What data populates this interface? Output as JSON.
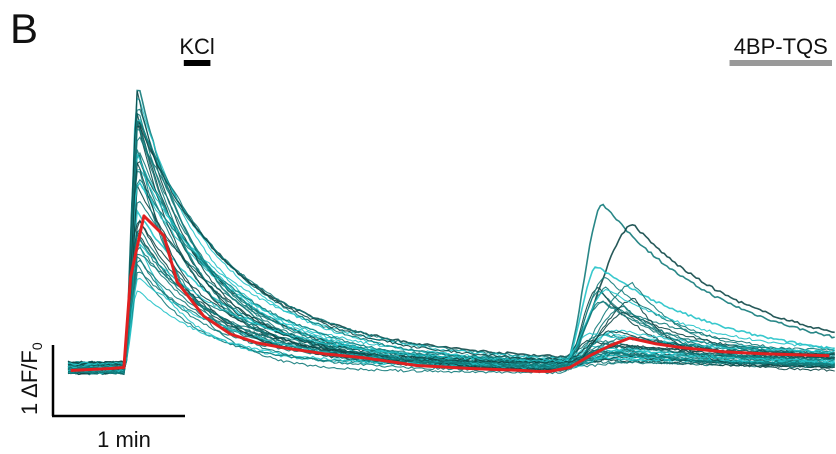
{
  "chart_data": {
    "type": "line",
    "panel_label": "B",
    "stimuli": [
      {
        "label": "KCl",
        "color": "#000000",
        "start": 0.45,
        "end": 0.65
      },
      {
        "label": "4BP-TQS",
        "color": "#999999",
        "start": 4.55,
        "end": 5.7
      }
    ],
    "scale_bar": {
      "x_label": "1 min",
      "x_value": 1,
      "y_label": "1 ΔF/F",
      "y_subscript": "0",
      "y_value": 1
    },
    "xlim": [
      -0.45,
      5.35
    ],
    "ylim": [
      -0.25,
      3.0
    ],
    "grid": false,
    "legend": "none",
    "colors": {
      "cells": "#127a7a",
      "cells_dark": "#0e4747",
      "cells_light": "#22c2c8",
      "mean": "#e02020"
    },
    "series": [
      {
        "name": "mean",
        "color": "#e02020",
        "x": [
          -0.4,
          -0.1,
          0.0,
          0.05,
          0.15,
          0.3,
          0.4,
          0.6,
          0.8,
          1.0,
          1.2,
          1.5,
          1.8,
          2.2,
          2.6,
          3.0,
          3.1,
          3.2,
          3.35,
          3.5,
          3.65,
          3.8,
          4.0,
          4.2,
          4.5,
          4.8,
          5.3
        ],
        "y": [
          0.05,
          0.07,
          0.08,
          1.0,
          1.62,
          1.42,
          0.95,
          0.6,
          0.42,
          0.33,
          0.28,
          0.22,
          0.18,
          0.1,
          0.07,
          0.05,
          0.04,
          0.04,
          0.08,
          0.2,
          0.3,
          0.38,
          0.32,
          0.28,
          0.24,
          0.22,
          0.2
        ]
      }
    ]
  }
}
